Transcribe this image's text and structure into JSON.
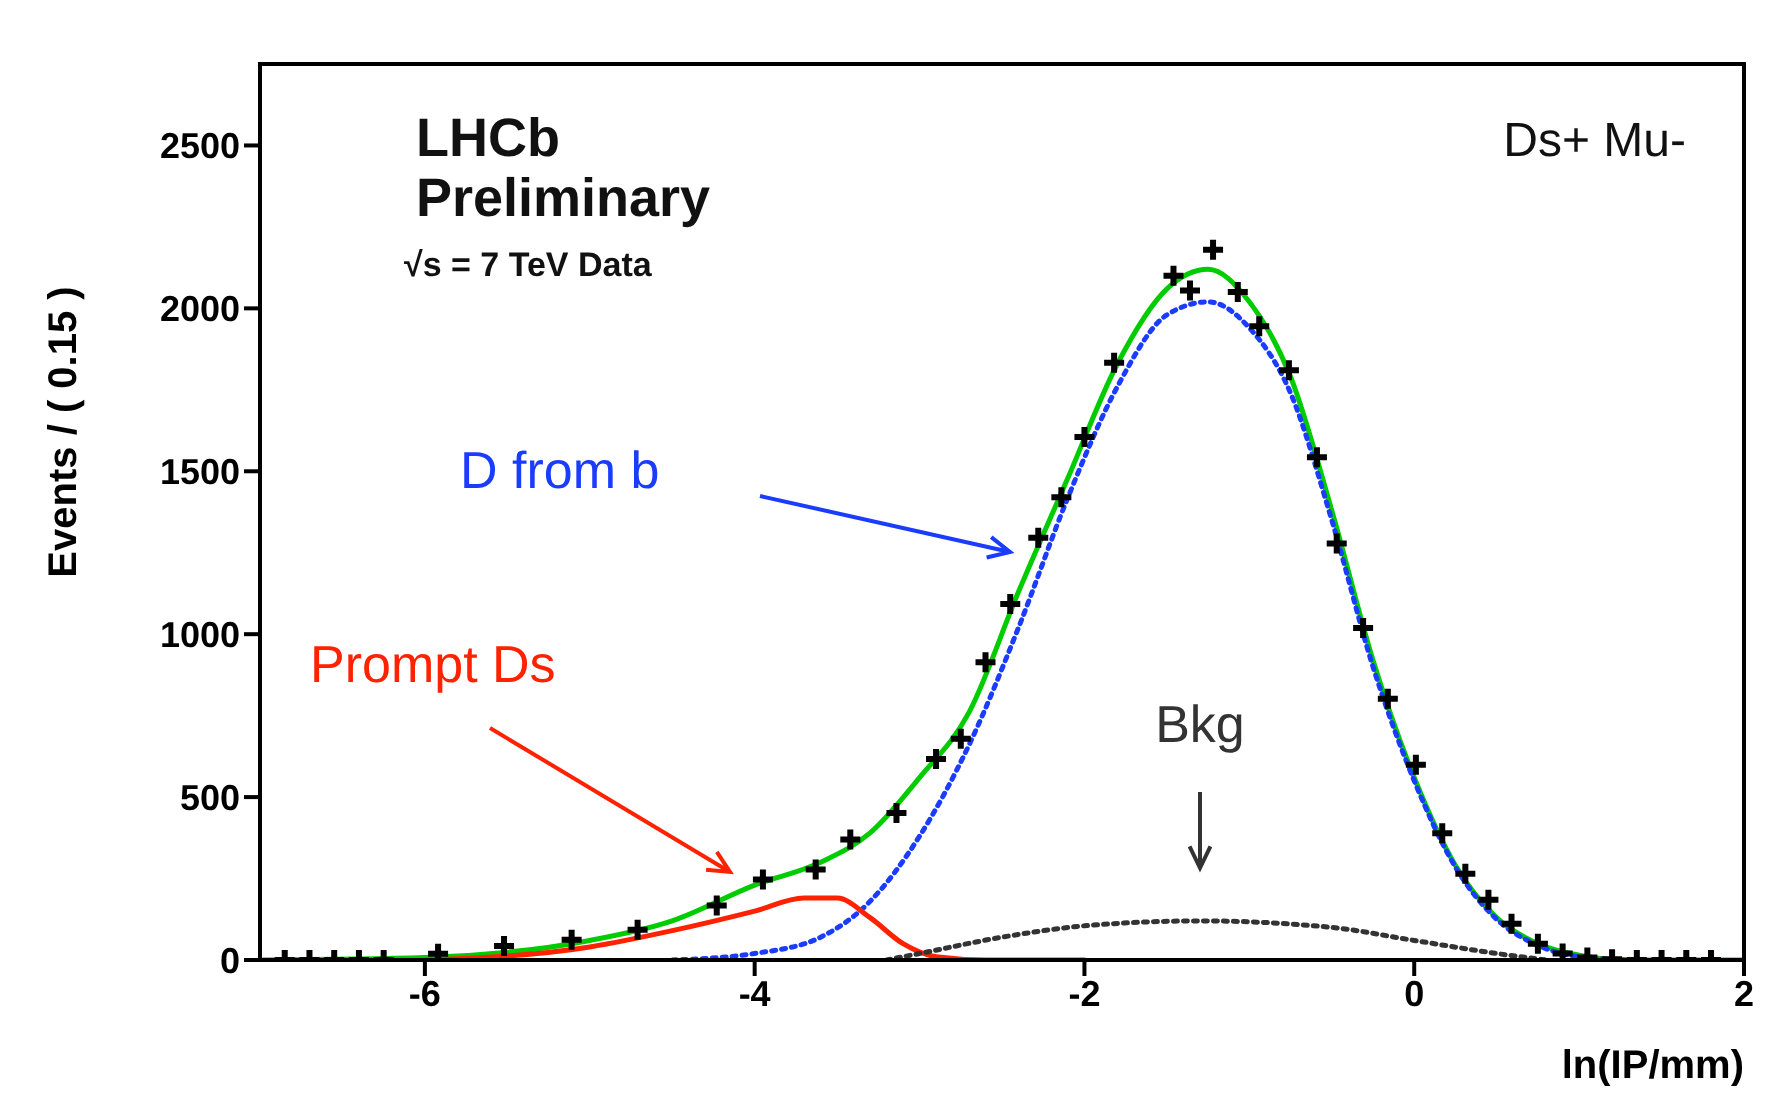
{
  "chart_data": {
    "type": "line",
    "xlabel": "ln(IP/mm)",
    "ylabel": "Events / ( 0.15 )",
    "xlim": [
      -7,
      2
    ],
    "ylim": [
      0,
      2750
    ],
    "xticks": [
      -6,
      -4,
      -2,
      0,
      2
    ],
    "yticks": [
      0,
      500,
      1000,
      1500,
      2000,
      2500
    ],
    "annotations": [
      "LHCb",
      "Preliminary",
      "√s = 7 TeV Data",
      "Ds+ Mu-"
    ],
    "series": [
      {
        "color": "#00cc00",
        "line_style": "solid",
        "marker": "none",
        "x": [
          -7,
          -6,
          -5,
          -4.5,
          -4,
          -3.6,
          -3.3,
          -3,
          -2.7,
          -2.4,
          -2.1,
          -1.8,
          -1.5,
          -1.25,
          -1,
          -0.75,
          -0.5,
          -0.25,
          0,
          0.25,
          0.5,
          0.75,
          1,
          1.3,
          2
        ],
        "values": [
          0,
          8,
          60,
          120,
          230,
          300,
          390,
          560,
          760,
          1130,
          1480,
          1830,
          2060,
          2120,
          2020,
          1790,
          1380,
          920,
          560,
          290,
          130,
          50,
          15,
          0,
          0
        ]
      },
      {
        "name": "D from b",
        "color": "#1a3cff",
        "line_style": "dotted",
        "marker": "none",
        "x": [
          -4.5,
          -4,
          -3.6,
          -3.3,
          -3,
          -2.7,
          -2.4,
          -2.1,
          -1.8,
          -1.5,
          -1.25,
          -1,
          -0.75,
          -0.5,
          -0.25,
          0,
          0.25,
          0.5,
          0.75,
          1,
          1.3
        ],
        "values": [
          0,
          20,
          70,
          180,
          380,
          660,
          1020,
          1420,
          1760,
          1980,
          2020,
          1940,
          1740,
          1350,
          900,
          550,
          285,
          125,
          45,
          10,
          0
        ]
      },
      {
        "name": "Prompt Ds",
        "color": "#ff2200",
        "line_style": "solid",
        "marker": "none",
        "x": [
          -6,
          -5,
          -4.5,
          -4,
          -3.7,
          -3.5,
          -3.3,
          -3.1,
          -2.9,
          -2.6,
          -2
        ],
        "values": [
          0,
          40,
          90,
          150,
          190,
          190,
          130,
          50,
          10,
          0,
          0
        ]
      },
      {
        "name": "Bkg",
        "color": "#333333",
        "line_style": "dotted",
        "marker": "none",
        "x": [
          -3.2,
          -3,
          -2.5,
          -2,
          -1.3,
          -0.5,
          0,
          0.5,
          0.8
        ],
        "values": [
          0,
          20,
          70,
          105,
          120,
          100,
          60,
          20,
          0
        ]
      },
      {
        "type": "scatter",
        "color": "#000000",
        "marker": "cross",
        "x": [
          -6.85,
          -6.7,
          -6.55,
          -6.4,
          -6.25,
          -5.92,
          -5.52,
          -5.11,
          -4.71,
          -4.23,
          -3.95,
          -3.63,
          -3.42,
          -3.14,
          -2.9,
          -2.75,
          -2.6,
          -2.45,
          -2.28,
          -2.14,
          -2.0,
          -1.82,
          -1.46,
          -1.36,
          -1.22,
          -1.07,
          -0.94,
          -0.76,
          -0.59,
          -0.47,
          -0.31,
          -0.16,
          0.01,
          0.17,
          0.31,
          0.45,
          0.59,
          0.75,
          0.9,
          1.05,
          1.2,
          1.35,
          1.5,
          1.65,
          1.8
        ],
        "values": [
          0,
          0,
          0,
          0,
          0,
          19,
          43,
          62,
          93,
          167,
          247,
          278,
          370,
          451,
          617,
          679,
          914,
          1093,
          1296,
          1420,
          1605,
          1833,
          2100,
          2055,
          2180,
          2050,
          1945,
          1810,
          1543,
          1278,
          1019,
          802,
          599,
          389,
          265,
          185,
          111,
          50,
          20,
          8,
          2,
          0,
          0,
          0,
          0
        ]
      }
    ]
  }
}
